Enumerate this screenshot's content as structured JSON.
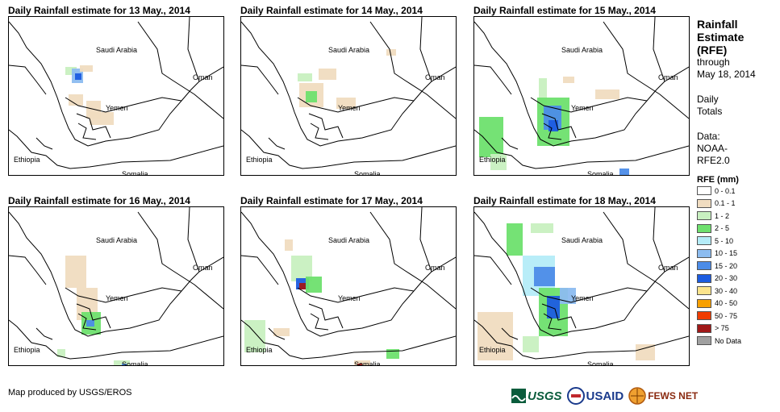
{
  "panels": [
    {
      "title": "Daily Rainfall estimate for 13 May., 2014"
    },
    {
      "title": "Daily Rainfall estimate for 14 May., 2014"
    },
    {
      "title": "Daily Rainfall estimate for 15 May., 2014"
    },
    {
      "title": "Daily Rainfall estimate for 16 May., 2014"
    },
    {
      "title": "Daily Rainfall estimate for 17 May., 2014"
    },
    {
      "title": "Daily Rainfall estimate for 18 May., 2014"
    }
  ],
  "map_labels": {
    "saudi": "Saudi Arabia",
    "oman": "Oman",
    "yemen": "Yemen",
    "ethiopia": "Ethiopia",
    "somalia": "Somalia"
  },
  "sidebar": {
    "title_line1": "Rainfall",
    "title_line2": "Estimate",
    "title_line3": "(RFE)",
    "through": "through",
    "date": "May 18, 2014",
    "daily_line1": "Daily",
    "daily_line2": "Totals",
    "data_line1": "Data:",
    "data_line2": "NOAA-",
    "data_line3": "RFE2.0"
  },
  "legend": {
    "title": "RFE (mm)",
    "items": [
      {
        "label": "0 - 0.1",
        "color": "#ffffff"
      },
      {
        "label": "0.1 - 1",
        "color": "#f0dcc0"
      },
      {
        "label": "1 - 2",
        "color": "#c8f0c0"
      },
      {
        "label": "2 - 5",
        "color": "#6ee06e"
      },
      {
        "label": "5 - 10",
        "color": "#b4ecf8"
      },
      {
        "label": "10 - 15",
        "color": "#8cbcf0"
      },
      {
        "label": "15 - 20",
        "color": "#4c8ce8"
      },
      {
        "label": "20 - 30",
        "color": "#1c5ce0"
      },
      {
        "label": "30 - 40",
        "color": "#fce48c"
      },
      {
        "label": "40 - 50",
        "color": "#f8a000"
      },
      {
        "label": "50 - 75",
        "color": "#f03c00"
      },
      {
        "label": "> 75",
        "color": "#a01818"
      },
      {
        "label": "No Data",
        "color": "#a0a0a0"
      }
    ]
  },
  "footer": {
    "credit": "Map produced by USGS/EROS"
  },
  "logos": {
    "usgs": "USGS",
    "usaid": "USAID",
    "fewsnet": "FEWS NET"
  }
}
